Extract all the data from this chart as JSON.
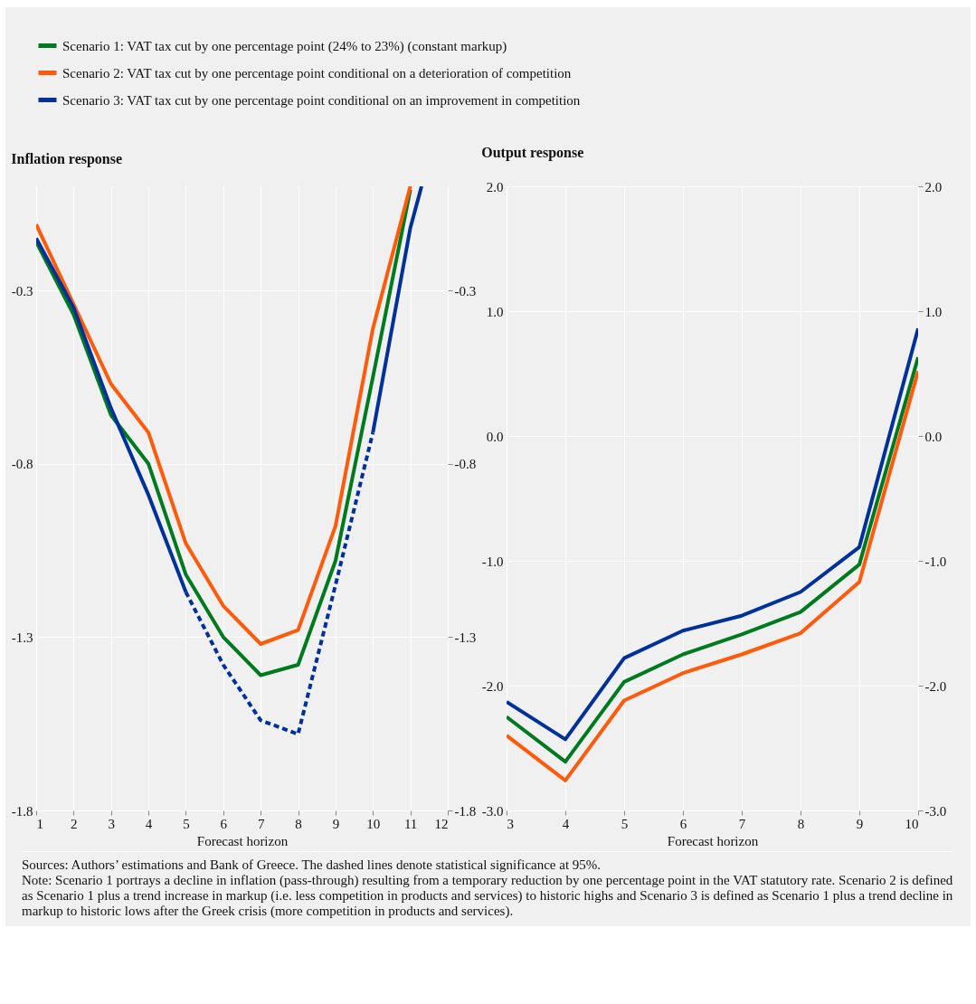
{
  "chart_data": [
    {
      "type": "line",
      "title": "Inflation response",
      "xlabel": "Forecast horizon",
      "x": [
        1,
        2,
        3,
        4,
        5,
        6,
        7,
        8,
        9,
        10,
        11
      ],
      "xlim": [
        1,
        12
      ],
      "xticks": [
        1,
        2,
        3,
        4,
        5,
        6,
        7,
        8,
        9,
        10,
        11,
        12
      ],
      "ylim": [
        -1.8,
        0.0
      ],
      "yticks": [
        -1.8,
        -1.3,
        -0.8,
        -0.3
      ],
      "y2lim": [
        -1.8,
        0.0
      ],
      "y2ticks": [
        -1.8,
        -1.3,
        -0.8,
        -0.3
      ],
      "grid": true,
      "legend": "top",
      "line_style": "solid",
      "series": [
        {
          "name": "Scenario 1: VAT tax cut by one percentage point (24% to 23%) (constant markup)",
          "color": "#007a1f",
          "values": [
            -0.16,
            -0.37,
            -0.66,
            -0.8,
            -1.12,
            -1.3,
            -1.41,
            -1.38,
            -1.08,
            -0.55,
            -0.01
          ]
        },
        {
          "name": "Scenario 2: VAT tax cut by one percentage point conditional on a deterioration of competition",
          "color": "#ff5a0a",
          "values": [
            -0.11,
            -0.34,
            -0.57,
            -0.71,
            -1.03,
            -1.21,
            -1.32,
            -1.28,
            -0.98,
            -0.41,
            0.0
          ]
        },
        {
          "name": "Scenario 3: VAT tax cut by one percentage point conditional on an improvement in competition",
          "color": "#00309a",
          "x": [
            1,
            2,
            3,
            4,
            5,
            6,
            7,
            8,
            9,
            10,
            11,
            11.3
          ],
          "values": [
            -0.15,
            -0.35,
            -0.64,
            -0.89,
            -1.17,
            null,
            null,
            null,
            null,
            -0.71,
            -0.12,
            0.0
          ]
        },
        {
          "color": "#00309a",
          "line_style": "dashed",
          "x": [
            5,
            6,
            7,
            8,
            9,
            10
          ],
          "values": [
            -1.17,
            -1.38,
            -1.54,
            -1.58,
            -1.15,
            -0.71
          ]
        }
      ],
      "annotations": [
        "Sources: Authors’ estimations and Bank of Greece. The dashed lines denote statistical significance at 95%.",
        "Note: Scenario 1 portrays a decline in inflation (pass-through) resulting from a temporary reduction by one percentage point in the VAT statutory rate. Scenario 2 is defined as Scenario 1 plus a trend increase in markup (i.e. less competition in products and services) to historic highs and Scenario 3 is defined as Scenario 1 plus a trend decline in markup to historic lows after the Greek crisis (more competition in products and services)."
      ]
    },
    {
      "type": "line",
      "title": "Output response",
      "xlabel": "Forecast horizon",
      "x": [
        3,
        4,
        5,
        6,
        7,
        8,
        9,
        10
      ],
      "xlim": [
        3,
        10
      ],
      "xticks": [
        3,
        4,
        5,
        6,
        7,
        8,
        9,
        10
      ],
      "ylim": [
        -3.0,
        2.0
      ],
      "yticks": [
        {
          "value": -3,
          "label": "-3.0"
        },
        {
          "value": -2,
          "label": "-2.0"
        },
        {
          "value": -1,
          "label": "-1.0"
        },
        {
          "value": 0,
          "label": "0.0"
        },
        {
          "value": 1,
          "label": "1.0"
        },
        {
          "value": 2,
          "label": "2.0"
        }
      ],
      "y2lim": [
        -3.0,
        2.0
      ],
      "y2ticks": [
        {
          "value": -3,
          "label": "-3.0"
        },
        {
          "value": -2,
          "label": "-2.0"
        },
        {
          "value": -1,
          "label": "-1.0"
        },
        {
          "value": 0,
          "label": "0.0"
        },
        {
          "value": 1,
          "label": "1.0"
        },
        {
          "value": 2,
          "label": "2.0"
        }
      ],
      "grid": true,
      "line_style": "solid",
      "series": [
        {
          "name": "Scenario 1: VAT tax cut by one percentage point (24% to 23%) (constant markup)",
          "color": "#007a1f",
          "values": [
            -2.25,
            -2.61,
            -1.97,
            -1.75,
            -1.59,
            -1.41,
            -1.03,
            0.63
          ]
        },
        {
          "name": "Scenario 2: VAT tax cut by one percentage point conditional on a deterioration of competition",
          "color": "#ff5a0a",
          "values": [
            -2.4,
            -2.76,
            -2.12,
            -1.9,
            -1.75,
            -1.58,
            -1.17,
            0.52
          ]
        },
        {
          "name": "Scenario 3: VAT tax cut by one percentage point conditional on an improvement in competition",
          "color": "#00309a",
          "values": [
            -2.13,
            -2.43,
            -1.78,
            -1.56,
            -1.44,
            -1.25,
            -0.89,
            0.86
          ]
        }
      ]
    }
  ]
}
